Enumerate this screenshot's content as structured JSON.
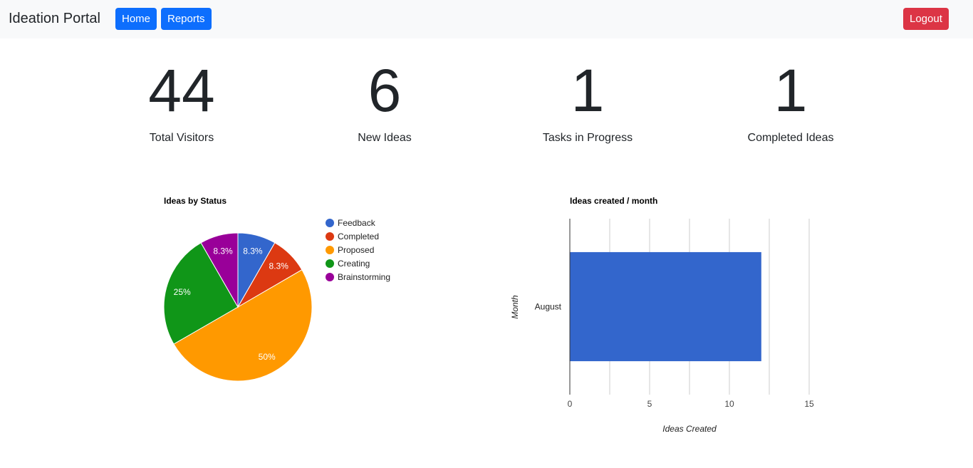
{
  "navbar": {
    "brand": "Ideation Portal",
    "home_label": "Home",
    "reports_label": "Reports",
    "logout_label": "Logout"
  },
  "stats": [
    {
      "value": "44",
      "label": "Total Visitors"
    },
    {
      "value": "6",
      "label": "New Ideas"
    },
    {
      "value": "1",
      "label": "Tasks in Progress"
    },
    {
      "value": "1",
      "label": "Completed Ideas"
    }
  ],
  "colors": {
    "primary": "#0d6efd",
    "danger": "#dc3545"
  },
  "chart_data": [
    {
      "type": "pie",
      "title": "Ideas by Status",
      "legend_position": "right",
      "slices": [
        {
          "label": "Feedback",
          "value": 8.3,
          "display": "8.3%",
          "color": "#3366cc"
        },
        {
          "label": "Completed",
          "value": 8.3,
          "display": "8.3%",
          "color": "#dc3912"
        },
        {
          "label": "Proposed",
          "value": 50,
          "display": "50%",
          "color": "#ff9900"
        },
        {
          "label": "Creating",
          "value": 25,
          "display": "25%",
          "color": "#109618"
        },
        {
          "label": "Brainstorming",
          "value": 8.3,
          "display": "8.3%",
          "color": "#990099"
        }
      ]
    },
    {
      "type": "bar",
      "orientation": "horizontal",
      "title": "Ideas created / month",
      "categories": [
        "August"
      ],
      "values": [
        12
      ],
      "xlabel": "Ideas Created",
      "ylabel": "Month",
      "xlim": [
        0,
        15
      ],
      "xticks": [
        0,
        5,
        10,
        15
      ],
      "grid": true,
      "bar_color": "#3366cc"
    }
  ]
}
